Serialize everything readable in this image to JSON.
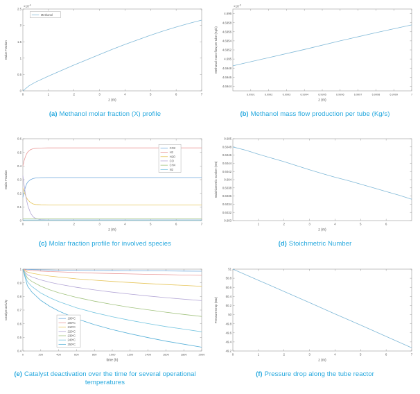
{
  "page": {
    "background_color": "#ffffff",
    "caption_color": "#25a8de",
    "axis_color": "#999999",
    "tick_text_color": "#555555"
  },
  "figures": [
    {
      "label": "(a)",
      "caption": "Methanol molar fraction (X) profile"
    },
    {
      "label": "(b)",
      "caption": "Methanol mass flow production per tube (Kg/s)"
    },
    {
      "label": "(c)",
      "caption": "Molar fraction profile for involved species"
    },
    {
      "label": "(d)",
      "caption": "Stoichmetric Number"
    },
    {
      "label": "(e)",
      "caption": "Catalyst deactivation over the time for several operational temperatures"
    },
    {
      "label": "(f)",
      "caption": "Pressure drop along the tube reactor"
    }
  ],
  "chart_data": [
    {
      "type": "line",
      "title": "Methanol molar fraction (X) profile",
      "xlabel": "z (m)",
      "ylabel": "Molar Fraction",
      "xlim": [
        0,
        7
      ],
      "ylim": [
        0,
        2.5
      ],
      "scale_note": {
        "base": "×10",
        "exp": "-4"
      },
      "xticks": {
        "values": [
          0,
          1,
          2,
          3,
          4,
          5,
          6,
          7
        ],
        "labels": [
          "0",
          "1",
          "2",
          "3",
          "4",
          "5",
          "6",
          "7"
        ]
      },
      "yticks": {
        "values": [
          0,
          0.5,
          1,
          1.5,
          2,
          2.5
        ],
        "labels": [
          "0",
          "0.5",
          "1",
          "1.5",
          "2",
          "2.5"
        ]
      },
      "legend": {
        "x": 0.04,
        "y": 0.03,
        "width": 44,
        "labels": [
          "Methanol"
        ]
      },
      "series": [
        {
          "name": "Methanol",
          "color": "#7fb8d7",
          "points": [
            [
              0,
              0
            ],
            [
              0.25,
              0.16
            ],
            [
              0.5,
              0.27
            ],
            [
              1,
              0.45
            ],
            [
              1.5,
              0.62
            ],
            [
              2,
              0.79
            ],
            [
              2.5,
              0.95
            ],
            [
              3,
              1.11
            ],
            [
              3.5,
              1.27
            ],
            [
              4,
              1.42
            ],
            [
              4.5,
              1.56
            ],
            [
              5,
              1.7
            ],
            [
              5.5,
              1.83
            ],
            [
              6,
              1.95
            ],
            [
              6.5,
              2.06
            ],
            [
              7,
              2.16
            ]
          ]
        }
      ]
    },
    {
      "type": "line",
      "title": "Methanol mass flow production per tube (Kg/s)",
      "xlabel": "z (m)",
      "ylabel": "Methanol mass flow per tube (Kg/s)",
      "xlim": [
        6.999,
        7.0
      ],
      "ylim": [
        4.6943,
        4.6961
      ],
      "scale_note": {
        "base": "×10",
        "exp": "-3"
      },
      "xtick_font": 3.8,
      "xticks": {
        "values": [
          6.9991,
          6.9992,
          6.9993,
          6.9994,
          6.9995,
          6.9996,
          6.9997,
          6.9998,
          6.9999,
          7
        ],
        "labels": [
          "6.9991",
          "6.9992",
          "6.9993",
          "6.9994",
          "6.9995",
          "6.9996",
          "6.9997",
          "6.9998",
          "6.9999",
          "7"
        ]
      },
      "yticks": {
        "values": [
          4.6944,
          4.6946,
          4.6948,
          4.695,
          4.6952,
          4.6954,
          4.6956,
          4.6958,
          4.696
        ],
        "labels": [
          "4.6944",
          "4.6946",
          "4.6948",
          "4.695",
          "4.6952",
          "4.6954",
          "4.6956",
          "4.6958",
          "4.696"
        ]
      },
      "series": [
        {
          "name": "Methanol mass flow",
          "color": "#7fb8d7",
          "points": [
            [
              6.999,
              4.69485
            ],
            [
              6.9992,
              4.69503
            ],
            [
              6.9994,
              4.69521
            ],
            [
              6.9996,
              4.6954
            ],
            [
              6.9998,
              4.69558
            ],
            [
              7,
              4.69575
            ]
          ]
        }
      ]
    },
    {
      "type": "line",
      "title": "Molar fraction profile for involved species",
      "xlabel": "z (m)",
      "ylabel": "Molar Fraction",
      "xlim": [
        0,
        7
      ],
      "ylim": [
        0,
        0.6
      ],
      "xticks": {
        "values": [
          0,
          1,
          2,
          3,
          4,
          5,
          6,
          7
        ],
        "labels": [
          "0",
          "1",
          "2",
          "3",
          "4",
          "5",
          "6",
          "7"
        ]
      },
      "yticks": {
        "values": [
          0,
          0.1,
          0.2,
          0.3,
          0.4,
          0.5,
          0.6
        ],
        "labels": [
          "0",
          "0.1",
          "0.2",
          "0.3",
          "0.4",
          "0.5",
          "0.6"
        ]
      },
      "legend": {
        "x": 0.76,
        "y": 0.07,
        "width": 32,
        "labels": [
          "CO2",
          "H2",
          "H2O",
          "CO",
          "CH4",
          "N2"
        ]
      },
      "series": [
        {
          "name": "CO2",
          "color": "#6fa8dc",
          "points": [
            [
              0,
              0.17
            ],
            [
              0.05,
              0.21
            ],
            [
              0.1,
              0.245
            ],
            [
              0.15,
              0.27
            ],
            [
              0.2,
              0.285
            ],
            [
              0.3,
              0.3
            ],
            [
              0.4,
              0.308
            ],
            [
              0.5,
              0.312
            ],
            [
              0.7,
              0.3145
            ],
            [
              1,
              0.315
            ],
            [
              7,
              0.315
            ]
          ]
        },
        {
          "name": "H2",
          "color": "#ea9999",
          "points": [
            [
              0,
              0.4
            ],
            [
              0.05,
              0.44
            ],
            [
              0.1,
              0.47
            ],
            [
              0.15,
              0.49
            ],
            [
              0.2,
              0.505
            ],
            [
              0.3,
              0.52
            ],
            [
              0.4,
              0.527
            ],
            [
              0.5,
              0.53
            ],
            [
              0.7,
              0.532
            ],
            [
              1,
              0.533
            ],
            [
              7,
              0.533
            ]
          ]
        },
        {
          "name": "H2O",
          "color": "#e6c55a",
          "points": [
            [
              0,
              0.24
            ],
            [
              0.05,
              0.21
            ],
            [
              0.1,
              0.185
            ],
            [
              0.15,
              0.165
            ],
            [
              0.2,
              0.15
            ],
            [
              0.3,
              0.132
            ],
            [
              0.4,
              0.122
            ],
            [
              0.5,
              0.118
            ],
            [
              0.7,
              0.116
            ],
            [
              1,
              0.115
            ],
            [
              7,
              0.115
            ]
          ]
        },
        {
          "name": "CO",
          "color": "#b4a7d6",
          "points": [
            [
              0,
              0.33
            ],
            [
              0.05,
              0.26
            ],
            [
              0.1,
              0.195
            ],
            [
              0.15,
              0.145
            ],
            [
              0.2,
              0.105
            ],
            [
              0.3,
              0.055
            ],
            [
              0.4,
              0.028
            ],
            [
              0.5,
              0.015
            ],
            [
              0.7,
              0.007
            ],
            [
              1,
              0.005
            ],
            [
              7,
              0.005
            ]
          ]
        },
        {
          "name": "CH4",
          "color": "#a2c37f",
          "points": [
            [
              0,
              0.012
            ],
            [
              7,
              0.012
            ]
          ]
        },
        {
          "name": "N2",
          "color": "#76c5e0",
          "points": [
            [
              0,
              0.004
            ],
            [
              7,
              0.004
            ]
          ]
        }
      ]
    },
    {
      "type": "line",
      "title": "Stoichmetric Number",
      "xlabel": "z (m)",
      "ylabel": "Stoichiometric number (SN)",
      "xlim": [
        0,
        7
      ],
      "ylim": [
        0.603,
        0.605
      ],
      "xticks": {
        "values": [
          1,
          2,
          3,
          4,
          5,
          6
        ],
        "labels": [
          "1",
          "2",
          "3",
          "4",
          "5",
          "6"
        ]
      },
      "yticks": {
        "values": [
          0.603,
          0.6032,
          0.6034,
          0.6036,
          0.6038,
          0.604,
          0.6042,
          0.6044,
          0.6046,
          0.6048,
          0.605
        ],
        "labels": [
          "0.603",
          "0.6032",
          "0.6034",
          "0.6036",
          "0.6038",
          "0.604",
          "0.6042",
          "0.6044",
          "0.6046",
          "0.6048",
          "0.605"
        ]
      },
      "series": [
        {
          "name": "SN",
          "color": "#7fb8d7",
          "points": [
            [
              0,
              0.6048
            ],
            [
              0.5,
              0.60472
            ],
            [
              1,
              0.60462
            ],
            [
              1.5,
              0.60453
            ],
            [
              2,
              0.60444
            ],
            [
              2.5,
              0.60434
            ],
            [
              3,
              0.60424
            ],
            [
              3.5,
              0.60415
            ],
            [
              4,
              0.60406
            ],
            [
              4.5,
              0.60398
            ],
            [
              5,
              0.60389
            ],
            [
              5.5,
              0.6038
            ],
            [
              6,
              0.60371
            ],
            [
              6.5,
              0.60362
            ],
            [
              7,
              0.60352
            ]
          ]
        }
      ]
    },
    {
      "type": "line",
      "title": "Catalyst deactivation over the time for several operational temperatures",
      "xlabel": "time (h)",
      "ylabel": "Catalyst activity",
      "xlim": [
        0,
        2000
      ],
      "ylim": [
        0.4,
        1
      ],
      "xtick_font": 4.0,
      "xticks": {
        "values": [
          0,
          200,
          400,
          600,
          800,
          1000,
          1200,
          1400,
          1600,
          1800,
          2000
        ],
        "labels": [
          "0",
          "200",
          "400",
          "600",
          "800",
          "1000",
          "1200",
          "1400",
          "1600",
          "1800",
          "2000"
        ]
      },
      "yticks": {
        "values": [
          0.4,
          0.5,
          0.6,
          0.7,
          0.8,
          0.9,
          1
        ],
        "labels": [
          "0.4",
          "0.5",
          "0.6",
          "0.7",
          "0.8",
          "0.9",
          "1"
        ]
      },
      "legend": {
        "x": 0.19,
        "y": 0.56,
        "width": 34,
        "labels": [
          "190ºC",
          "200ºC",
          "210ºC",
          "220ºC",
          "230ºC",
          "240ºC",
          "250ºC"
        ]
      },
      "x": [
        0,
        50,
        100,
        200,
        300,
        400,
        600,
        800,
        1000,
        1200,
        1400,
        1600,
        1800,
        2000
      ],
      "series": [
        {
          "name": "190ºC",
          "color": "#6fa8dc",
          "y": [
            1,
            0.998,
            0.997,
            0.995,
            0.994,
            0.993,
            0.992,
            0.99,
            0.989,
            0.988,
            0.987,
            0.987,
            0.986,
            0.985
          ]
        },
        {
          "name": "200ºC",
          "color": "#ea9999",
          "y": [
            1,
            0.993,
            0.99,
            0.986,
            0.982,
            0.98,
            0.975,
            0.971,
            0.968,
            0.965,
            0.962,
            0.96,
            0.957,
            0.955
          ]
        },
        {
          "name": "210ºC",
          "color": "#e6c55a",
          "y": [
            1,
            0.979,
            0.97,
            0.959,
            0.949,
            0.942,
            0.929,
            0.919,
            0.91,
            0.902,
            0.894,
            0.887,
            0.881,
            0.874
          ]
        },
        {
          "name": "220ºC",
          "color": "#b4a7d6",
          "y": [
            1,
            0.959,
            0.943,
            0.921,
            0.904,
            0.89,
            0.867,
            0.848,
            0.831,
            0.817,
            0.803,
            0.791,
            0.78,
            0.769
          ]
        },
        {
          "name": "230ºC",
          "color": "#a2c37f",
          "y": [
            1,
            0.935,
            0.91,
            0.875,
            0.849,
            0.827,
            0.793,
            0.765,
            0.741,
            0.72,
            0.702,
            0.684,
            0.668,
            0.653
          ]
        },
        {
          "name": "240ºC",
          "color": "#76c5e0",
          "y": [
            1,
            0.908,
            0.873,
            0.825,
            0.791,
            0.762,
            0.717,
            0.681,
            0.651,
            0.625,
            0.601,
            0.579,
            0.56,
            0.541
          ]
        },
        {
          "name": "250ºC",
          "color": "#57b0d8",
          "y": [
            1,
            0.878,
            0.832,
            0.771,
            0.728,
            0.693,
            0.637,
            0.593,
            0.557,
            0.526,
            0.498,
            0.472,
            0.45,
            0.428
          ]
        }
      ]
    },
    {
      "type": "line",
      "title": "Pressure drop along the tube reactor",
      "xlabel": "z (m)",
      "ylabel": "Pressure Drop (Bar)",
      "xlim": [
        0,
        7
      ],
      "ylim": [
        49.2,
        51
      ],
      "xticks": {
        "values": [
          0,
          1,
          2,
          3,
          4,
          5,
          6,
          7
        ],
        "labels": [
          "0",
          "1",
          "2",
          "3",
          "4",
          "5",
          "6",
          "7"
        ]
      },
      "yticks": {
        "values": [
          49.2,
          49.4,
          49.6,
          49.8,
          50,
          50.2,
          50.4,
          50.6,
          50.8,
          51
        ],
        "labels": [
          "49.2",
          "49.4",
          "49.6",
          "49.8",
          "50",
          "50.2",
          "50.4",
          "50.6",
          "50.8",
          "51"
        ]
      },
      "series": [
        {
          "name": "Pressure",
          "color": "#7fb8d7",
          "points": [
            [
              0,
              51
            ],
            [
              1,
              50.755
            ],
            [
              2,
              50.51
            ],
            [
              3,
              50.265
            ],
            [
              4,
              50.015
            ],
            [
              5,
              49.77
            ],
            [
              6,
              49.52
            ],
            [
              7,
              49.27
            ]
          ]
        }
      ]
    }
  ]
}
